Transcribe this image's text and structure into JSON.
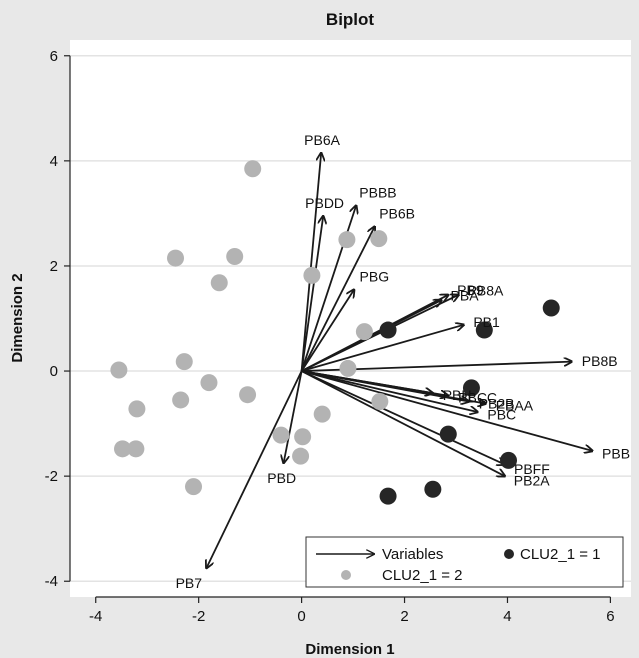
{
  "chart_data": {
    "type": "scatter",
    "title": "Biplot",
    "xlabel": "Dimension 1",
    "ylabel": "Dimension 2",
    "xlim": [
      -4.5,
      6.4
    ],
    "ylim": [
      -4.3,
      6.3
    ],
    "xticks": [
      -4,
      -2,
      0,
      2,
      4,
      6
    ],
    "yticks": [
      -4,
      -2,
      0,
      2,
      4,
      6
    ],
    "grid": "horizontal",
    "colors": {
      "frame_background": "#e8e8e8",
      "plot_background": "#ffffff",
      "gridline": "#e3e3e3",
      "arrow": "#1a1a1a",
      "cluster1": "#262626",
      "cluster2": "#b3b3b3"
    },
    "variables": [
      {
        "label": "PB6A",
        "x": 0.38,
        "y": 4.15
      },
      {
        "label": "PBBB",
        "x": 1.06,
        "y": 3.15
      },
      {
        "label": "PBDD",
        "x": 0.42,
        "y": 2.95
      },
      {
        "label": "PB6B",
        "x": 1.42,
        "y": 2.75
      },
      {
        "label": "PBG",
        "x": 1.02,
        "y": 1.55
      },
      {
        "label": "PB8A",
        "x": 3.05,
        "y": 1.45
      },
      {
        "label": "PB9",
        "x": 2.85,
        "y": 1.45
      },
      {
        "label": "PBA",
        "x": 2.72,
        "y": 1.35
      },
      {
        "label": "PB1",
        "x": 3.15,
        "y": 0.88
      },
      {
        "label": "PB8B",
        "x": 5.25,
        "y": 0.18
      },
      {
        "label": "PBH",
        "x": 2.55,
        "y": -0.42
      },
      {
        "label": "PBCC",
        "x": 2.85,
        "y": -0.47
      },
      {
        "label": "PB2B",
        "x": 3.25,
        "y": -0.58
      },
      {
        "label": "PBAA",
        "x": 3.58,
        "y": -0.62
      },
      {
        "label": "PBC",
        "x": 3.42,
        "y": -0.78
      },
      {
        "label": "PBB",
        "x": 5.65,
        "y": -1.52
      },
      {
        "label": "PBFF",
        "x": 3.95,
        "y": -1.78
      },
      {
        "label": "PB2A",
        "x": 3.95,
        "y": -2.0
      },
      {
        "label": "PBD",
        "x": -0.35,
        "y": -1.75
      },
      {
        "label": "PB7",
        "x": -1.85,
        "y": -3.75
      }
    ],
    "series": [
      {
        "name": "CLU2_1 = 1",
        "points": [
          {
            "x": 1.68,
            "y": 0.78
          },
          {
            "x": 3.55,
            "y": 0.78
          },
          {
            "x": 4.85,
            "y": 1.2
          },
          {
            "x": 3.3,
            "y": -0.32
          },
          {
            "x": 2.85,
            "y": -1.2
          },
          {
            "x": 4.02,
            "y": -1.7
          },
          {
            "x": 2.55,
            "y": -2.25
          },
          {
            "x": 1.68,
            "y": -2.38
          }
        ]
      },
      {
        "name": "CLU2_1 = 2",
        "points": [
          {
            "x": -0.95,
            "y": 3.85
          },
          {
            "x": -2.45,
            "y": 2.15
          },
          {
            "x": -1.3,
            "y": 2.18
          },
          {
            "x": -1.6,
            "y": 1.68
          },
          {
            "x": 0.2,
            "y": 1.82
          },
          {
            "x": 0.88,
            "y": 2.5
          },
          {
            "x": 1.5,
            "y": 2.52
          },
          {
            "x": 1.22,
            "y": 0.75
          },
          {
            "x": 0.9,
            "y": 0.05
          },
          {
            "x": -3.55,
            "y": 0.02
          },
          {
            "x": -2.28,
            "y": 0.18
          },
          {
            "x": -1.8,
            "y": -0.22
          },
          {
            "x": -2.35,
            "y": -0.55
          },
          {
            "x": -3.2,
            "y": -0.72
          },
          {
            "x": -1.05,
            "y": -0.45
          },
          {
            "x": 0.4,
            "y": -0.82
          },
          {
            "x": 1.52,
            "y": -0.58
          },
          {
            "x": -0.4,
            "y": -1.22
          },
          {
            "x": 0.02,
            "y": -1.25
          },
          {
            "x": -3.48,
            "y": -1.48
          },
          {
            "x": -3.22,
            "y": -1.48
          },
          {
            "x": -0.02,
            "y": -1.62
          },
          {
            "x": -2.1,
            "y": -2.2
          }
        ]
      }
    ],
    "legend": {
      "position": "bottom-right",
      "entries": [
        {
          "kind": "arrow",
          "label": "Variables"
        },
        {
          "kind": "marker",
          "series": 0,
          "label": "CLU2_1 = 1"
        },
        {
          "kind": "marker",
          "series": 1,
          "label": "CLU2_1 = 2"
        }
      ]
    }
  }
}
